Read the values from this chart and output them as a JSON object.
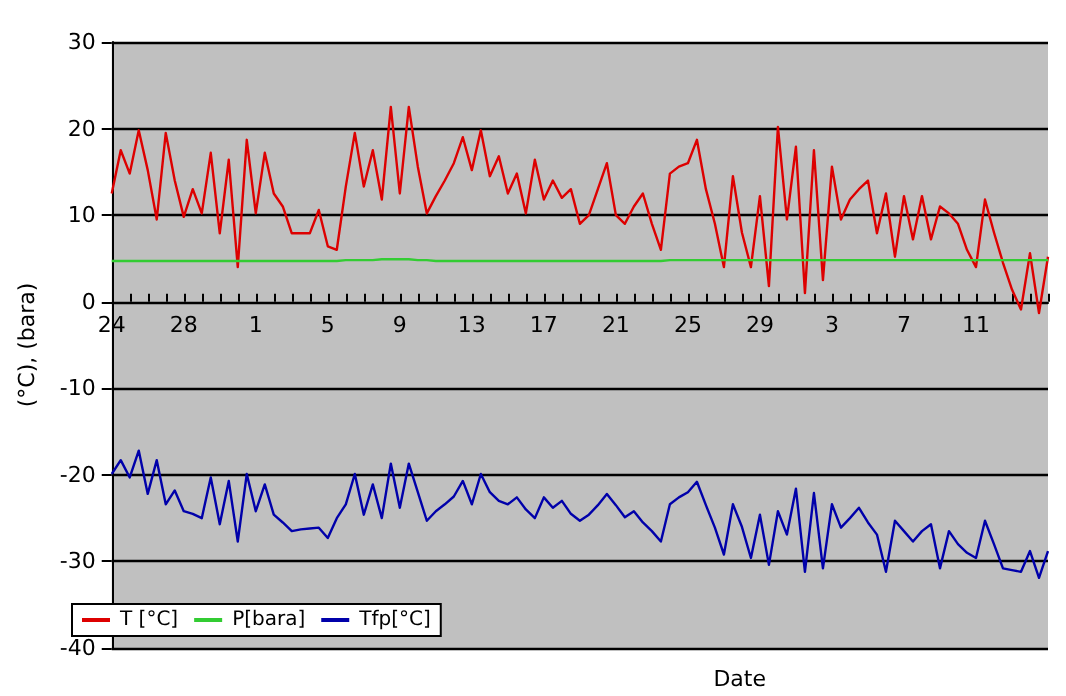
{
  "chart_data": {
    "type": "line",
    "xlabel": "Date",
    "ylabel": "(°C), (bara)",
    "categories": [
      "24",
      null,
      null,
      null,
      null,
      null,
      null,
      null,
      "28",
      null,
      null,
      null,
      null,
      null,
      null,
      null,
      "1",
      null,
      null,
      null,
      null,
      null,
      null,
      null,
      "5",
      null,
      null,
      null,
      null,
      null,
      null,
      null,
      "9",
      null,
      null,
      null,
      null,
      null,
      null,
      null,
      "13",
      null,
      null,
      null,
      null,
      null,
      null,
      null,
      "17",
      null,
      null,
      null,
      null,
      null,
      null,
      null,
      "21",
      null,
      null,
      null,
      null,
      null,
      null,
      null,
      "25",
      null,
      null,
      null,
      null,
      null,
      null,
      null,
      "29",
      null,
      null,
      null,
      null,
      null,
      null,
      null,
      "3",
      null,
      null,
      null,
      null,
      null,
      null,
      null,
      "7",
      null,
      null,
      null,
      null,
      null,
      null,
      null,
      "11",
      null,
      null,
      null,
      null,
      null,
      null,
      null,
      null
    ],
    "ylim": [
      -40,
      30
    ],
    "yticks": [
      -40,
      -30,
      -20,
      -10,
      0,
      10,
      20,
      30
    ],
    "grid": "y",
    "legend": "bottom left",
    "marker": "none",
    "line_style": "solid",
    "series": [
      {
        "name": "T [°C]",
        "color": "#dd0000",
        "values": [
          12.5,
          17.5,
          14.8,
          19.8,
          15.2,
          9.5,
          19.5,
          14,
          9.8,
          13,
          10.2,
          17.2,
          7.9,
          16.4,
          4,
          18.7,
          10.2,
          17.2,
          12.5,
          11,
          7.9,
          7.9,
          7.9,
          10.6,
          6.4,
          6,
          13.3,
          19.5,
          13.3,
          17.5,
          11.8,
          22.5,
          12.5,
          22.5,
          15.6,
          10.2,
          12.2,
          14,
          16,
          19,
          15.2,
          19.8,
          14.5,
          16.8,
          12.5,
          14.8,
          10.2,
          16.4,
          11.8,
          14,
          12,
          13,
          9,
          10,
          13,
          16,
          10,
          9,
          11,
          12.5,
          9,
          6,
          14.8,
          15.6,
          16,
          18.7,
          13,
          9,
          4,
          14.5,
          8,
          4,
          12.2,
          1.8,
          20.2,
          9.5,
          17.9,
          1,
          17.5,
          2.5,
          15.6,
          9.5,
          11.8,
          13,
          14,
          7.9,
          12.5,
          5.2,
          12.2,
          7.2,
          12.2,
          7.2,
          11,
          10.2,
          9,
          6,
          4,
          11.8,
          8,
          4.5,
          1.4,
          -0.9,
          5.6,
          -1.3,
          5.2
        ]
      },
      {
        "name": "P[bara]",
        "color": "#33cc33",
        "values": [
          4.7,
          4.7,
          4.7,
          4.7,
          4.7,
          4.7,
          4.7,
          4.7,
          4.7,
          4.7,
          4.7,
          4.7,
          4.7,
          4.7,
          4.7,
          4.7,
          4.7,
          4.7,
          4.7,
          4.7,
          4.7,
          4.7,
          4.7,
          4.7,
          4.7,
          4.7,
          4.8,
          4.8,
          4.8,
          4.8,
          4.9,
          4.9,
          4.9,
          4.9,
          4.8,
          4.8,
          4.7,
          4.7,
          4.7,
          4.7,
          4.7,
          4.7,
          4.7,
          4.7,
          4.7,
          4.7,
          4.7,
          4.7,
          4.7,
          4.7,
          4.7,
          4.7,
          4.7,
          4.7,
          4.7,
          4.7,
          4.7,
          4.7,
          4.7,
          4.7,
          4.7,
          4.7,
          4.8,
          4.8,
          4.8,
          4.8,
          4.8,
          4.8,
          4.8,
          4.8,
          4.8,
          4.8,
          4.8,
          4.8,
          4.8,
          4.8,
          4.8,
          4.8,
          4.8,
          4.8,
          4.8,
          4.8,
          4.8,
          4.8,
          4.8,
          4.8,
          4.8,
          4.8,
          4.8,
          4.8,
          4.8,
          4.8,
          4.8,
          4.8,
          4.8,
          4.8,
          4.8,
          4.8,
          4.8,
          4.8,
          4.8,
          4.8,
          4.8,
          4.8,
          4.8
        ]
      },
      {
        "name": "Tfp[°C]",
        "color": "#0000aa",
        "values": [
          -19.9,
          -18.3,
          -20.3,
          -17.2,
          -22.2,
          -18.3,
          -23.4,
          -21.8,
          -24.2,
          -24.5,
          -25,
          -20.3,
          -25.7,
          -20.7,
          -27.7,
          -19.9,
          -24.2,
          -21.1,
          -24.6,
          -25.5,
          -26.5,
          -26.3,
          -26.2,
          -26.1,
          -27.3,
          -25,
          -23.4,
          -19.9,
          -24.6,
          -21.1,
          -25,
          -18.7,
          -23.8,
          -18.7,
          -22,
          -25.3,
          -24.2,
          -23.4,
          -22.5,
          -20.7,
          -23.4,
          -19.9,
          -22,
          -23,
          -23.4,
          -22.6,
          -24,
          -25,
          -22.6,
          -23.8,
          -23,
          -24.5,
          -25.3,
          -24.6,
          -23.5,
          -22.2,
          -23.5,
          -24.9,
          -24.2,
          -25.5,
          -26.5,
          -27.7,
          -23.4,
          -22.6,
          -22,
          -20.8,
          -23.5,
          -26.1,
          -29.2,
          -23.4,
          -26,
          -29.6,
          -24.6,
          -30.4,
          -24.2,
          -26.9,
          -21.6,
          -31.2,
          -22.1,
          -30.8,
          -23.4,
          -26.1,
          -25,
          -23.8,
          -25.5,
          -26.9,
          -31.2,
          -25.3,
          -26.5,
          -27.7,
          -26.5,
          -25.7,
          -30.8,
          -26.5,
          -28,
          -29,
          -29.6,
          -25.3,
          -28,
          -30.8,
          -31,
          -31.2,
          -28.8,
          -31.9,
          -28.8
        ]
      }
    ]
  }
}
